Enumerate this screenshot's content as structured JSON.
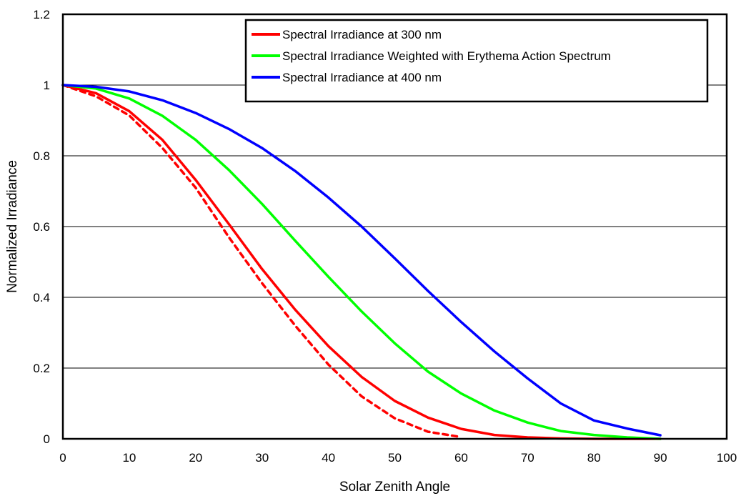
{
  "chart_data": {
    "type": "line",
    "title": "",
    "xlabel": "Solar Zenith Angle",
    "ylabel": "Normalized Irradiance",
    "xlim": [
      0,
      100
    ],
    "ylim": [
      0,
      1.2
    ],
    "xticks": [
      0,
      10,
      20,
      30,
      40,
      50,
      60,
      70,
      80,
      90,
      100
    ],
    "yticks": [
      0,
      0.2,
      0.4,
      0.6,
      0.8,
      1,
      1.2
    ],
    "grid": "horizontal",
    "legend_position": "top-right",
    "colors": {
      "s300": "#ff0000",
      "erythema": "#00ff00",
      "s400": "#0000ff"
    },
    "series": [
      {
        "name": "Spectral Irradiance at 300 nm",
        "color": "#ff0000",
        "style": "solid",
        "x": [
          0,
          5,
          10,
          15,
          20,
          25,
          30,
          35,
          40,
          45,
          50,
          55,
          60,
          65,
          70,
          75,
          80,
          85,
          90
        ],
        "y": [
          1.0,
          0.977,
          0.926,
          0.845,
          0.732,
          0.607,
          0.48,
          0.365,
          0.262,
          0.175,
          0.107,
          0.06,
          0.028,
          0.011,
          0.004,
          0.001,
          0.0,
          0.0,
          0.0
        ]
      },
      {
        "name": "",
        "color": "#ff0000",
        "style": "dashed",
        "x": [
          0,
          5,
          10,
          15,
          20,
          25,
          30,
          35,
          40,
          45,
          50,
          55,
          60
        ],
        "y": [
          1.0,
          0.968,
          0.914,
          0.822,
          0.71,
          0.57,
          0.44,
          0.32,
          0.21,
          0.12,
          0.058,
          0.02,
          0.005
        ]
      },
      {
        "name": "Spectral Irradiance Weighted with Erythema Action Spectrum",
        "color": "#00ff00",
        "style": "solid",
        "x": [
          0,
          5,
          10,
          15,
          20,
          25,
          30,
          35,
          40,
          45,
          50,
          55,
          60,
          65,
          70,
          75,
          80,
          85,
          90
        ],
        "y": [
          1.0,
          0.99,
          0.962,
          0.913,
          0.845,
          0.76,
          0.664,
          0.56,
          0.458,
          0.36,
          0.27,
          0.19,
          0.128,
          0.08,
          0.046,
          0.022,
          0.011,
          0.004,
          0.0
        ]
      },
      {
        "name": "Spectral Irradiance at 400 nm",
        "color": "#0000ff",
        "style": "solid",
        "x": [
          0,
          5,
          10,
          15,
          20,
          25,
          30,
          35,
          40,
          45,
          50,
          55,
          60,
          65,
          70,
          75,
          80,
          85,
          90
        ],
        "y": [
          1.0,
          0.995,
          0.982,
          0.957,
          0.921,
          0.876,
          0.822,
          0.757,
          0.682,
          0.6,
          0.51,
          0.418,
          0.33,
          0.247,
          0.171,
          0.1,
          0.052,
          0.029,
          0.01
        ]
      }
    ]
  }
}
